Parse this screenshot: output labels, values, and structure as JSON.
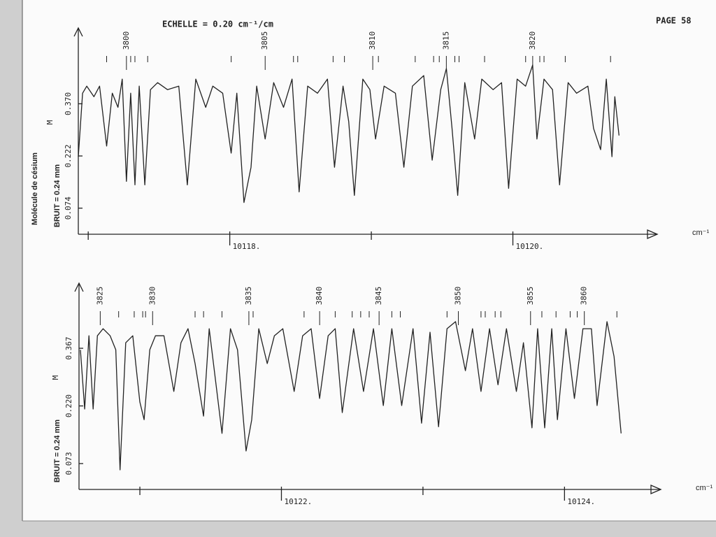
{
  "header": {
    "scale": "ECHELLE = 0.20 cm⁻¹/cm",
    "page": "PAGE 58"
  },
  "chart_data": [
    {
      "type": "line",
      "side_label": "Molécule de césium",
      "ylabel": "BRUIT = 0.24 mm",
      "marker": "M",
      "xlabel": "cm⁻¹",
      "color": "#222222",
      "xlim": [
        10116.93,
        10121.02
      ],
      "ylim": [
        0,
        0.585
      ],
      "xticks": [
        {
          "value": 10118,
          "label": "10118."
        },
        {
          "value": 10120,
          "label": "10120."
        }
      ],
      "xticks_minor": [
        10117,
        10119
      ],
      "yticks": [
        {
          "value": 0.074,
          "label": "0.074"
        },
        {
          "value": 0.222,
          "label": "0.222"
        },
        {
          "value": 0.37,
          "label": "0.370"
        }
      ],
      "x": [
        10116.93,
        10116.96,
        10116.99,
        10117.04,
        10117.08,
        10117.13,
        10117.17,
        10117.21,
        10117.24,
        10117.27,
        10117.3,
        10117.33,
        10117.36,
        10117.4,
        10117.44,
        10117.49,
        10117.56,
        10117.64,
        10117.7,
        10117.76,
        10117.83,
        10117.88,
        10117.95,
        10118.01,
        10118.05,
        10118.1,
        10118.15,
        10118.19,
        10118.25,
        10118.31,
        10118.38,
        10118.44,
        10118.49,
        10118.55,
        10118.62,
        10118.69,
        10118.74,
        10118.8,
        10118.84,
        10118.88,
        10118.94,
        10118.99,
        10119.03,
        10119.09,
        10119.17,
        10119.23,
        10119.29,
        10119.37,
        10119.43,
        10119.49,
        10119.53,
        10119.57,
        10119.61,
        10119.66,
        10119.73,
        10119.78,
        10119.86,
        10119.92,
        10119.97,
        10120.03,
        10120.09,
        10120.14,
        10120.17,
        10120.22,
        10120.28,
        10120.33,
        10120.39,
        10120.45,
        10120.53,
        10120.57,
        10120.62,
        10120.66,
        10120.7,
        10120.72,
        10120.75
      ],
      "values": [
        0.22,
        0.4,
        0.42,
        0.39,
        0.42,
        0.25,
        0.4,
        0.36,
        0.44,
        0.15,
        0.4,
        0.14,
        0.42,
        0.14,
        0.41,
        0.43,
        0.41,
        0.42,
        0.14,
        0.44,
        0.36,
        0.42,
        0.4,
        0.23,
        0.4,
        0.09,
        0.19,
        0.42,
        0.27,
        0.43,
        0.36,
        0.44,
        0.12,
        0.42,
        0.4,
        0.44,
        0.19,
        0.42,
        0.32,
        0.11,
        0.44,
        0.41,
        0.27,
        0.42,
        0.4,
        0.19,
        0.42,
        0.45,
        0.21,
        0.41,
        0.47,
        0.3,
        0.11,
        0.43,
        0.27,
        0.44,
        0.41,
        0.43,
        0.13,
        0.44,
        0.42,
        0.48,
        0.27,
        0.44,
        0.41,
        0.14,
        0.43,
        0.4,
        0.42,
        0.3,
        0.24,
        0.44,
        0.22,
        0.39,
        0.28
      ],
      "line_labels": [
        {
          "label": "3800",
          "x": 10117.27
        },
        {
          "label": "3805",
          "x": 10118.25
        },
        {
          "label": "3810",
          "x": 10119.01
        },
        {
          "label": "3815",
          "x": 10119.53
        },
        {
          "label": "3820",
          "x": 10120.14
        }
      ],
      "line_marks": [
        10117.13,
        10117.3,
        10117.33,
        10117.42,
        10118.01,
        10118.45,
        10118.48,
        10118.73,
        10118.81,
        10119.05,
        10119.31,
        10119.44,
        10119.48,
        10119.59,
        10119.62,
        10119.8,
        10120.09,
        10120.19,
        10120.22,
        10120.37,
        10120.69
      ]
    },
    {
      "type": "line",
      "ylabel": "BRUIT = 0.24 mm",
      "marker": "M",
      "xlabel": "cm⁻¹",
      "color": "#222222",
      "xlim": [
        10120.57,
        10124.68
      ],
      "ylim": [
        0.007,
        0.533
      ],
      "xticks": [
        {
          "value": 10122,
          "label": "10122."
        },
        {
          "value": 10124,
          "label": "10124."
        }
      ],
      "xticks_minor": [
        10121,
        10123
      ],
      "yticks": [
        {
          "value": 0.073,
          "label": "0.073"
        },
        {
          "value": 0.22,
          "label": "0.220"
        },
        {
          "value": 0.367,
          "label": "0.367"
        }
      ],
      "x": [
        10120.58,
        10120.61,
        10120.64,
        10120.67,
        10120.7,
        10120.74,
        10120.79,
        10120.83,
        10120.86,
        10120.9,
        10120.95,
        10121.0,
        10121.03,
        10121.07,
        10121.11,
        10121.17,
        10121.24,
        10121.29,
        10121.34,
        10121.39,
        10121.45,
        10121.49,
        10121.58,
        10121.64,
        10121.69,
        10121.75,
        10121.79,
        10121.84,
        10121.9,
        10121.95,
        10122.01,
        10122.09,
        10122.15,
        10122.21,
        10122.27,
        10122.33,
        10122.38,
        10122.43,
        10122.51,
        10122.58,
        10122.65,
        10122.72,
        10122.78,
        10122.85,
        10122.93,
        10122.99,
        10123.05,
        10123.11,
        10123.17,
        10123.23,
        10123.3,
        10123.35,
        10123.41,
        10123.47,
        10123.53,
        10123.59,
        10123.66,
        10123.71,
        10123.77,
        10123.81,
        10123.86,
        10123.91,
        10123.95,
        10124.01,
        10124.07,
        10124.13,
        10124.19,
        10124.23,
        10124.3,
        10124.35,
        10124.4
      ],
      "values": [
        0.363,
        0.212,
        0.399,
        0.212,
        0.399,
        0.417,
        0.399,
        0.363,
        0.057,
        0.381,
        0.399,
        0.23,
        0.185,
        0.363,
        0.399,
        0.399,
        0.257,
        0.381,
        0.417,
        0.328,
        0.194,
        0.417,
        0.15,
        0.417,
        0.363,
        0.105,
        0.185,
        0.417,
        0.328,
        0.399,
        0.417,
        0.257,
        0.399,
        0.417,
        0.239,
        0.399,
        0.417,
        0.203,
        0.417,
        0.257,
        0.417,
        0.221,
        0.417,
        0.221,
        0.417,
        0.176,
        0.408,
        0.167,
        0.417,
        0.435,
        0.31,
        0.417,
        0.257,
        0.417,
        0.274,
        0.417,
        0.257,
        0.381,
        0.164,
        0.417,
        0.164,
        0.417,
        0.185,
        0.417,
        0.239,
        0.417,
        0.417,
        0.221,
        0.435,
        0.346,
        0.15
      ],
      "line_labels": [
        {
          "label": "3825",
          "x": 10120.72
        },
        {
          "label": "3830",
          "x": 10121.09
        },
        {
          "label": "3835",
          "x": 10121.77
        },
        {
          "label": "3840",
          "x": 10122.27
        },
        {
          "label": "3845",
          "x": 10122.69
        },
        {
          "label": "3850",
          "x": 10123.25
        },
        {
          "label": "3855",
          "x": 10123.76
        },
        {
          "label": "3860",
          "x": 10124.14
        }
      ],
      "line_marks": [
        10120.85,
        10120.96,
        10121.02,
        10121.04,
        10121.39,
        10121.45,
        10121.58,
        10121.8,
        10122.16,
        10122.38,
        10122.5,
        10122.56,
        10122.62,
        10122.78,
        10122.84,
        10123.17,
        10123.41,
        10123.44,
        10123.51,
        10123.55,
        10123.84,
        10123.94,
        10124.04,
        10124.09,
        10124.37
      ]
    }
  ]
}
